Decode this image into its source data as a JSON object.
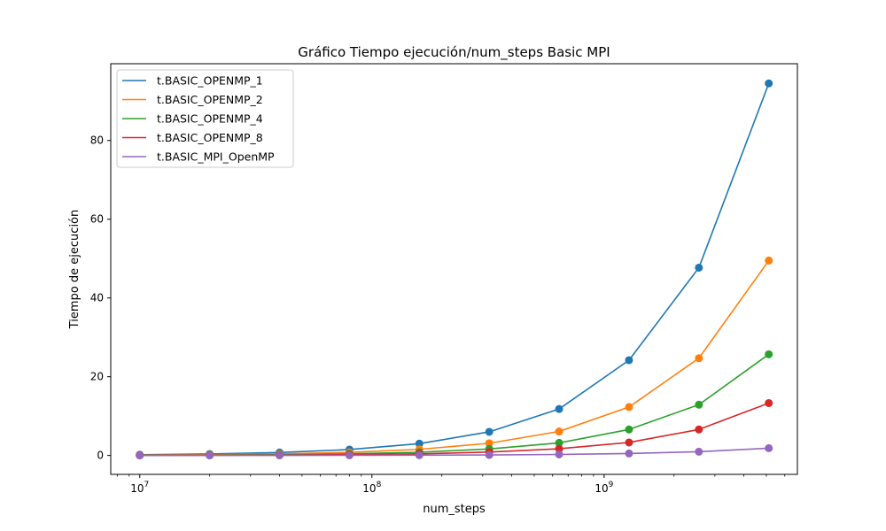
{
  "chart_data": {
    "type": "line",
    "title": "Gráfico Tiempo ejecución/num_steps Basic MPI",
    "xlabel": "num_steps",
    "ylabel": "Tiempo de ejecución",
    "xscale": "log",
    "xlim": [
      7500000,
      6800000000
    ],
    "ylim": [
      -4.8,
      99.5
    ],
    "x": [
      10000000,
      20000000,
      40000000,
      80000000,
      160000000,
      320000000,
      640000000,
      1280000000,
      2560000000,
      5120000000
    ],
    "x_ticks": [
      {
        "base": "10",
        "exp": "7",
        "value": 10000000
      },
      {
        "base": "10",
        "exp": "8",
        "value": 100000000
      },
      {
        "base": "10",
        "exp": "9",
        "value": 1000000000
      }
    ],
    "y_ticks": [
      0,
      20,
      40,
      60,
      80
    ],
    "grid": false,
    "legend_position": "upper-left",
    "markers": true,
    "series": [
      {
        "name": "t.BASIC_OPENMP_1",
        "color": "#1f77b4",
        "values": [
          0.19,
          0.38,
          0.75,
          1.5,
          3.0,
          6.0,
          11.8,
          24.2,
          47.7,
          94.5
        ]
      },
      {
        "name": "t.BASIC_OPENMP_2",
        "color": "#ff7f0e",
        "values": [
          0.1,
          0.2,
          0.39,
          0.78,
          1.55,
          3.1,
          6.1,
          12.3,
          24.7,
          49.5
        ]
      },
      {
        "name": "t.BASIC_OPENMP_4",
        "color": "#2ca02c",
        "values": [
          0.05,
          0.1,
          0.2,
          0.41,
          0.82,
          1.65,
          3.2,
          6.6,
          12.9,
          25.7
        ]
      },
      {
        "name": "t.BASIC_OPENMP_8",
        "color": "#d62728",
        "values": [
          0.03,
          0.05,
          0.1,
          0.21,
          0.42,
          0.85,
          1.7,
          3.3,
          6.6,
          13.3
        ]
      },
      {
        "name": "t.BASIC_MPI_OpenMP",
        "color": "#9467bd",
        "values": [
          0.005,
          0.01,
          0.02,
          0.04,
          0.07,
          0.12,
          0.26,
          0.5,
          0.95,
          1.85
        ]
      }
    ]
  }
}
